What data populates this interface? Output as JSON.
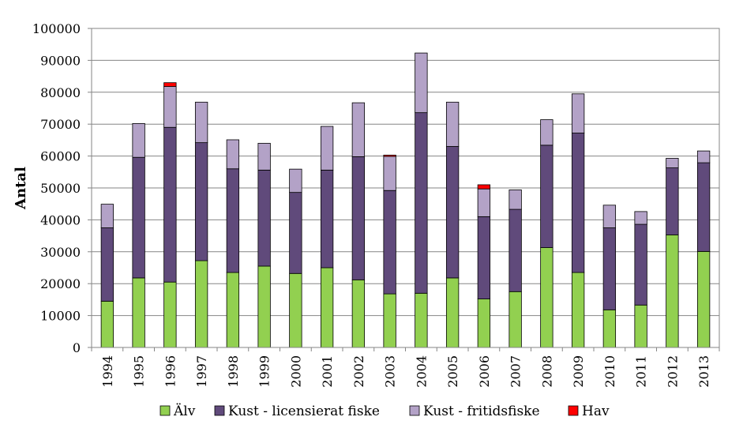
{
  "chart_data": {
    "type": "bar",
    "stacked": true,
    "title": "",
    "xlabel": "",
    "ylabel": "Antal",
    "ylim": [
      0,
      100000
    ],
    "yticks": [
      "0",
      "10000",
      "20000",
      "30000",
      "40000",
      "50000",
      "60000",
      "70000",
      "80000",
      "90000",
      "100000"
    ],
    "grid": true,
    "legend_position": "bottom",
    "categories": [
      "1994",
      "1995",
      "1996",
      "1997",
      "1998",
      "1999",
      "2000",
      "2001",
      "2002",
      "2003",
      "2004",
      "2005",
      "2006",
      "2007",
      "2008",
      "2009",
      "2010",
      "2011",
      "2012",
      "2013"
    ],
    "series": [
      {
        "name": "Älv",
        "color": "#92d050",
        "values": [
          14500,
          21800,
          20500,
          27200,
          23500,
          25500,
          23200,
          25000,
          21200,
          16800,
          17000,
          21800,
          15200,
          17500,
          31300,
          23500,
          11800,
          13300,
          35300,
          30100
        ]
      },
      {
        "name": "Kust - licensierat fiske",
        "color": "#604a7b",
        "values": [
          23000,
          37800,
          48500,
          37000,
          32500,
          30100,
          25400,
          30600,
          38600,
          32400,
          56600,
          41200,
          25800,
          25800,
          32100,
          43700,
          25700,
          25300,
          21000,
          27800
        ]
      },
      {
        "name": "Kust - fritidsfiske",
        "color": "#b3a2c7",
        "values": [
          7400,
          10600,
          12800,
          12700,
          9100,
          8400,
          7300,
          13700,
          16900,
          10700,
          18700,
          13900,
          8700,
          6100,
          8000,
          12300,
          7100,
          4000,
          3000,
          3700
        ]
      },
      {
        "name": "Hav",
        "color": "#ff0000",
        "values": [
          0,
          0,
          1200,
          0,
          0,
          0,
          0,
          0,
          0,
          400,
          0,
          0,
          1300,
          0,
          0,
          0,
          0,
          0,
          0,
          0
        ]
      }
    ]
  }
}
